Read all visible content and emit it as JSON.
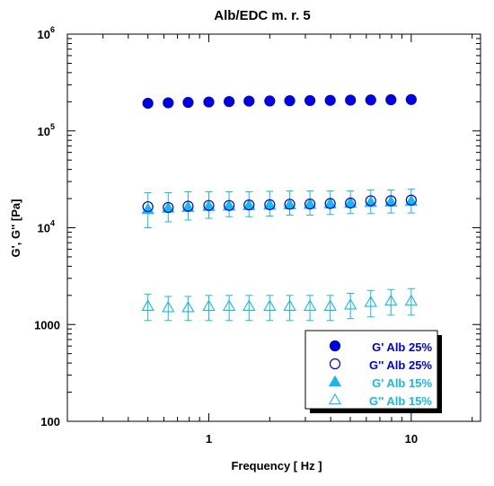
{
  "chart_data": {
    "type": "scatter",
    "title": "Alb/EDC m. r. 5",
    "xlabel": "Frequency [ Hz ]",
    "ylabel": "G', G'' [Pa]",
    "x_scale": "log",
    "y_scale": "log",
    "xlim": [
      0.2,
      22
    ],
    "ylim": [
      100,
      1000000
    ],
    "x_ticks": [
      {
        "value": 1,
        "label": "1"
      },
      {
        "value": 10,
        "label": "10"
      }
    ],
    "y_ticks": [
      {
        "value": 100,
        "label": "100",
        "base": "",
        "exp": ""
      },
      {
        "value": 1000,
        "label": "1000",
        "base": "",
        "exp": ""
      },
      {
        "value": 10000,
        "label": "",
        "base": "10",
        "exp": "4"
      },
      {
        "value": 100000,
        "label": "",
        "base": "10",
        "exp": "5"
      },
      {
        "value": 1000000,
        "label": "",
        "base": "10",
        "exp": "6"
      }
    ],
    "grid": false,
    "legend_position": "bottom-right",
    "series": [
      {
        "name": "G' Alb 25%",
        "color": "#0000e0",
        "marker": "filled-circle",
        "x": [
          0.5,
          0.63,
          0.79,
          1.0,
          1.26,
          1.58,
          2.0,
          2.51,
          3.16,
          3.98,
          5.01,
          6.31,
          7.94,
          10.0
        ],
        "y": [
          193000,
          195000,
          197000,
          199000,
          201000,
          203000,
          204000,
          205000,
          206000,
          207000,
          208000,
          209000,
          210000,
          211000
        ]
      },
      {
        "name": "G'' Alb 25%",
        "color": "#0000e0",
        "marker": "open-circle",
        "x": [
          0.5,
          0.63,
          0.79,
          1.0,
          1.26,
          1.58,
          2.0,
          2.51,
          3.16,
          3.98,
          5.01,
          6.31,
          7.94,
          10.0
        ],
        "y": [
          16500,
          16200,
          16700,
          17000,
          17000,
          17200,
          17300,
          17500,
          17600,
          17800,
          18000,
          19000,
          19000,
          19300
        ]
      },
      {
        "name": "G' Alb 15%",
        "color": "#18b8e8",
        "marker": "filled-triangle",
        "x": [
          0.5,
          0.63,
          0.79,
          1.0,
          1.26,
          1.58,
          2.0,
          2.51,
          3.16,
          3.98,
          5.01,
          6.31,
          7.94,
          10.0
        ],
        "y": [
          15500,
          16000,
          16300,
          16700,
          16800,
          17000,
          17200,
          17300,
          17500,
          17700,
          18000,
          18300,
          18500,
          18800
        ],
        "err_low": [
          10000,
          11500,
          12000,
          12500,
          13000,
          13000,
          13200,
          13500,
          13500,
          13700,
          14000,
          14000,
          14200,
          14200
        ],
        "err_high": [
          23000,
          23000,
          23500,
          23500,
          23500,
          23500,
          23800,
          24000,
          24000,
          24000,
          24000,
          24500,
          24500,
          25000
        ]
      },
      {
        "name": "G'' Alb 15%",
        "color": "#18b8e8",
        "marker": "open-triangle",
        "x": [
          0.5,
          0.63,
          0.79,
          1.0,
          1.26,
          1.58,
          2.0,
          2.51,
          3.16,
          3.98,
          5.01,
          6.31,
          7.94,
          10.0
        ],
        "y": [
          1550,
          1500,
          1500,
          1550,
          1550,
          1550,
          1550,
          1550,
          1550,
          1550,
          1600,
          1700,
          1750,
          1750
        ],
        "err_low": [
          1100,
          1100,
          1100,
          1100,
          1100,
          1100,
          1100,
          1100,
          1100,
          1100,
          1150,
          1200,
          1250,
          1250
        ],
        "err_high": [
          2050,
          1950,
          1950,
          2000,
          2000,
          2000,
          2000,
          2000,
          2000,
          2000,
          2100,
          2250,
          2300,
          2350
        ]
      }
    ]
  }
}
